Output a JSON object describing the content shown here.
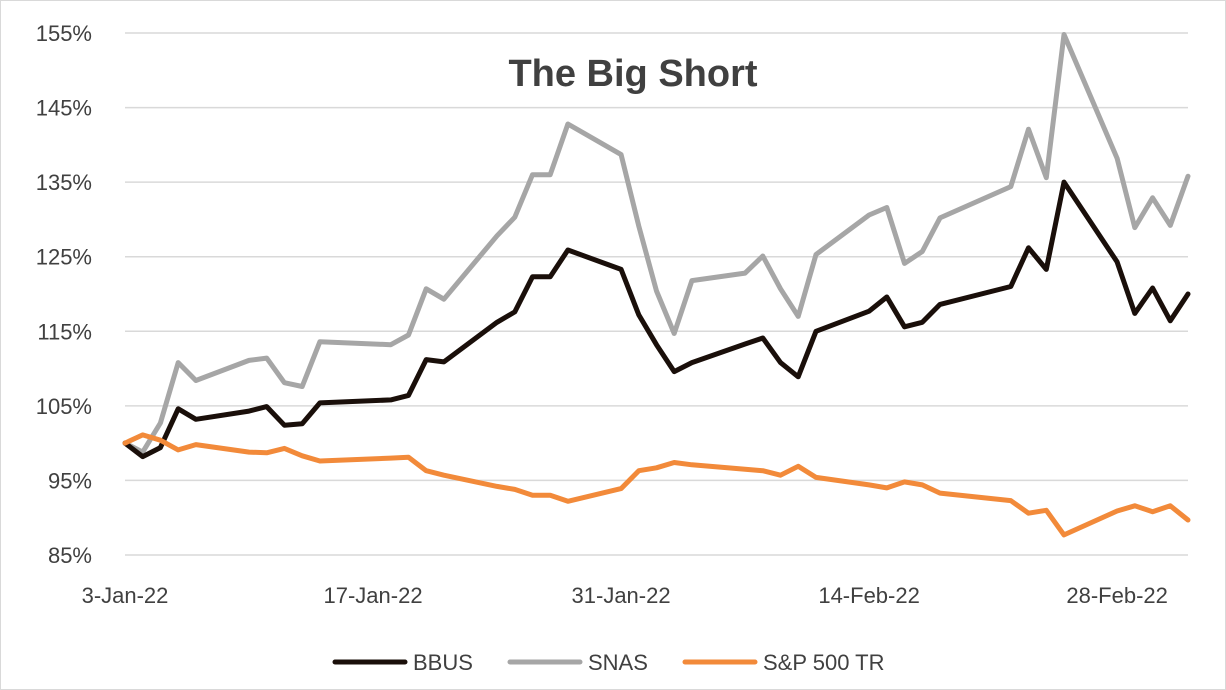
{
  "chart_data": {
    "type": "line",
    "title": "The Big Short",
    "xlabel": "",
    "ylabel": "",
    "ylim": [
      85,
      155
    ],
    "y_ticks": [
      "85%",
      "95%",
      "105%",
      "115%",
      "125%",
      "135%",
      "145%",
      "155%"
    ],
    "x_ticks": [
      "3-Jan-22",
      "17-Jan-22",
      "31-Jan-22",
      "14-Feb-22",
      "28-Feb-22"
    ],
    "grid": "horizontal",
    "legend_position": "bottom",
    "x": [
      "3-Jan-22",
      "4-Jan-22",
      "5-Jan-22",
      "6-Jan-22",
      "7-Jan-22",
      "10-Jan-22",
      "11-Jan-22",
      "12-Jan-22",
      "13-Jan-22",
      "14-Jan-22",
      "18-Jan-22",
      "19-Jan-22",
      "20-Jan-22",
      "21-Jan-22",
      "24-Jan-22",
      "25-Jan-22",
      "26-Jan-22",
      "27-Jan-22",
      "28-Jan-22",
      "31-Jan-22",
      "1-Feb-22",
      "2-Feb-22",
      "3-Feb-22",
      "4-Feb-22",
      "7-Feb-22",
      "8-Feb-22",
      "9-Feb-22",
      "10-Feb-22",
      "11-Feb-22",
      "14-Feb-22",
      "15-Feb-22",
      "16-Feb-22",
      "17-Feb-22",
      "18-Feb-22",
      "22-Feb-22",
      "23-Feb-22",
      "24-Feb-22",
      "25-Feb-22",
      "28-Feb-22",
      "1-Mar-22",
      "2-Mar-22",
      "3-Mar-22",
      "4-Mar-22"
    ],
    "series": [
      {
        "name": "BBUS",
        "color": "#1a0f0a",
        "points": [
          [
            "3-Jan-22",
            100
          ],
          [
            "4-Jan-22",
            98.2
          ],
          [
            "5-Jan-22",
            99.4
          ],
          [
            "6-Jan-22",
            104.6
          ],
          [
            "7-Jan-22",
            103.2
          ],
          [
            "10-Jan-22",
            104.3
          ],
          [
            "11-Jan-22",
            104.9
          ],
          [
            "12-Jan-22",
            102.4
          ],
          [
            "13-Jan-22",
            102.6
          ],
          [
            "14-Jan-22",
            105.4
          ],
          [
            "18-Jan-22",
            105.8
          ],
          [
            "19-Jan-22",
            106.4
          ],
          [
            "20-Jan-22",
            111.2
          ],
          [
            "21-Jan-22",
            110.9
          ],
          [
            "24-Jan-22",
            116.2
          ],
          [
            "25-Jan-22",
            117.6
          ],
          [
            "26-Jan-22",
            122.3
          ],
          [
            "27-Jan-22",
            122.3
          ],
          [
            "28-Jan-22",
            125.9
          ],
          [
            "31-Jan-22",
            123.3
          ],
          [
            "1-Feb-22",
            117.2
          ],
          [
            "2-Feb-22",
            113.2
          ],
          [
            "3-Feb-22",
            109.6
          ],
          [
            "4-Feb-22",
            110.8
          ],
          [
            "7-Feb-22",
            113.3
          ],
          [
            "8-Feb-22",
            114.1
          ],
          [
            "9-Feb-22",
            110.8
          ],
          [
            "10-Feb-22",
            108.9
          ],
          [
            "11-Feb-22",
            115.0
          ],
          [
            "14-Feb-22",
            117.7
          ],
          [
            "15-Feb-22",
            119.6
          ],
          [
            "16-Feb-22",
            115.6
          ],
          [
            "17-Feb-22",
            116.2
          ],
          [
            "18-Feb-22",
            118.6
          ],
          [
            "22-Feb-22",
            121.0
          ],
          [
            "23-Feb-22",
            126.2
          ],
          [
            "24-Feb-22",
            123.3
          ],
          [
            "25-Feb-22",
            135.0
          ],
          [
            "28-Feb-22",
            124.3
          ],
          [
            "1-Mar-22",
            117.4
          ],
          [
            "2-Mar-22",
            120.8
          ],
          [
            "3-Mar-22",
            116.4
          ],
          [
            "4-Mar-22",
            120.0
          ]
        ]
      },
      {
        "name": "SNAS",
        "color": "#a6a6a6",
        "points": [
          [
            "3-Jan-22",
            100
          ],
          [
            "4-Jan-22",
            98.8
          ],
          [
            "5-Jan-22",
            102.7
          ],
          [
            "6-Jan-22",
            110.8
          ],
          [
            "7-Jan-22",
            108.4
          ],
          [
            "10-Jan-22",
            111.1
          ],
          [
            "11-Jan-22",
            111.4
          ],
          [
            "12-Jan-22",
            108.1
          ],
          [
            "13-Jan-22",
            107.6
          ],
          [
            "14-Jan-22",
            113.6
          ],
          [
            "18-Jan-22",
            113.2
          ],
          [
            "19-Jan-22",
            114.5
          ],
          [
            "20-Jan-22",
            120.7
          ],
          [
            "21-Jan-22",
            119.3
          ],
          [
            "24-Jan-22",
            127.8
          ],
          [
            "25-Jan-22",
            130.3
          ],
          [
            "26-Jan-22",
            136.0
          ],
          [
            "27-Jan-22",
            136.0
          ],
          [
            "28-Jan-22",
            142.8
          ],
          [
            "31-Jan-22",
            138.7
          ],
          [
            "1-Feb-22",
            129.1
          ],
          [
            "2-Feb-22",
            120.4
          ],
          [
            "3-Feb-22",
            114.7
          ],
          [
            "4-Feb-22",
            121.8
          ],
          [
            "7-Feb-22",
            122.8
          ],
          [
            "8-Feb-22",
            125.1
          ],
          [
            "9-Feb-22",
            120.7
          ],
          [
            "10-Feb-22",
            117.0
          ],
          [
            "11-Feb-22",
            125.3
          ],
          [
            "14-Feb-22",
            130.6
          ],
          [
            "15-Feb-22",
            131.6
          ],
          [
            "16-Feb-22",
            124.1
          ],
          [
            "17-Feb-22",
            125.7
          ],
          [
            "18-Feb-22",
            130.2
          ],
          [
            "22-Feb-22",
            134.4
          ],
          [
            "23-Feb-22",
            142.1
          ],
          [
            "24-Feb-22",
            135.6
          ],
          [
            "25-Feb-22",
            154.8
          ],
          [
            "28-Feb-22",
            138.2
          ],
          [
            "1-Mar-22",
            128.9
          ],
          [
            "2-Mar-22",
            132.9
          ],
          [
            "3-Mar-22",
            129.2
          ],
          [
            "4-Mar-22",
            135.8
          ]
        ]
      },
      {
        "name": "S&P 500 TR",
        "color": "#f28a3a",
        "points": [
          [
            "3-Jan-22",
            100
          ],
          [
            "4-Jan-22",
            101.1
          ],
          [
            "5-Jan-22",
            100.4
          ],
          [
            "6-Jan-22",
            99.1
          ],
          [
            "7-Jan-22",
            99.8
          ],
          [
            "10-Jan-22",
            98.8
          ],
          [
            "11-Jan-22",
            98.7
          ],
          [
            "12-Jan-22",
            99.3
          ],
          [
            "13-Jan-22",
            98.3
          ],
          [
            "14-Jan-22",
            97.6
          ],
          [
            "18-Jan-22",
            98.0
          ],
          [
            "19-Jan-22",
            98.1
          ],
          [
            "20-Jan-22",
            96.3
          ],
          [
            "21-Jan-22",
            95.7
          ],
          [
            "24-Jan-22",
            94.2
          ],
          [
            "25-Jan-22",
            93.8
          ],
          [
            "26-Jan-22",
            93.0
          ],
          [
            "27-Jan-22",
            93.0
          ],
          [
            "28-Jan-22",
            92.2
          ],
          [
            "31-Jan-22",
            93.9
          ],
          [
            "1-Feb-22",
            96.3
          ],
          [
            "2-Feb-22",
            96.7
          ],
          [
            "3-Feb-22",
            97.4
          ],
          [
            "4-Feb-22",
            97.1
          ],
          [
            "7-Feb-22",
            96.5
          ],
          [
            "8-Feb-22",
            96.3
          ],
          [
            "9-Feb-22",
            95.7
          ],
          [
            "10-Feb-22",
            96.9
          ],
          [
            "11-Feb-22",
            95.4
          ],
          [
            "14-Feb-22",
            94.4
          ],
          [
            "15-Feb-22",
            94.0
          ],
          [
            "16-Feb-22",
            94.8
          ],
          [
            "17-Feb-22",
            94.4
          ],
          [
            "18-Feb-22",
            93.3
          ],
          [
            "22-Feb-22",
            92.3
          ],
          [
            "23-Feb-22",
            90.6
          ],
          [
            "24-Feb-22",
            91.0
          ],
          [
            "25-Feb-22",
            87.7
          ],
          [
            "28-Feb-22",
            90.9
          ],
          [
            "1-Mar-22",
            91.6
          ],
          [
            "2-Mar-22",
            90.8
          ],
          [
            "3-Mar-22",
            91.6
          ],
          [
            "4-Mar-22",
            89.7
          ]
        ]
      }
    ]
  }
}
